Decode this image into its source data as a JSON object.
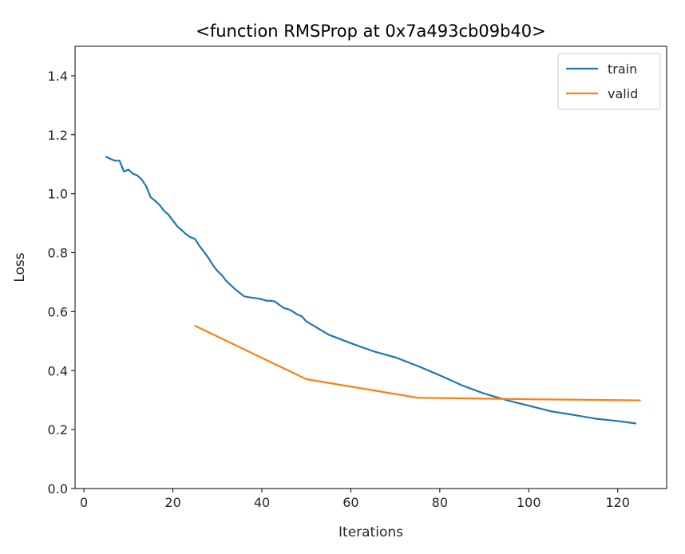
{
  "chart_data": {
    "type": "line",
    "title": "<function RMSProp at 0x7a493cb09b40>",
    "xlabel": "Iterations",
    "ylabel": "Loss",
    "xlim": [
      -2,
      131
    ],
    "ylim": [
      0.0,
      1.5
    ],
    "xticks": [
      0,
      20,
      40,
      60,
      80,
      100,
      120
    ],
    "yticks": [
      0.0,
      0.2,
      0.4,
      0.6,
      0.8,
      1.0,
      1.2,
      1.4
    ],
    "xtick_labels": [
      "0",
      "20",
      "40",
      "60",
      "80",
      "100",
      "120"
    ],
    "ytick_labels": [
      "0.0",
      "0.2",
      "0.4",
      "0.6",
      "0.8",
      "1.0",
      "1.2",
      "1.4"
    ],
    "grid": false,
    "legend_position": "top-right",
    "series": [
      {
        "name": "train",
        "color": "#1f77b4",
        "x": [
          5,
          6,
          7,
          8,
          9,
          10,
          11,
          12,
          13,
          14,
          15,
          16,
          17,
          18,
          19,
          20,
          21,
          22,
          23,
          24,
          25,
          26,
          27,
          28,
          29,
          30,
          31,
          32,
          33,
          34,
          35,
          36,
          37,
          38,
          39,
          40,
          41,
          42,
          43,
          44,
          45,
          46,
          47,
          48,
          49,
          50,
          55,
          60,
          65,
          70,
          75,
          80,
          85,
          90,
          95,
          100,
          105,
          110,
          115,
          120,
          124
        ],
        "y": [
          1.125,
          1.118,
          1.112,
          1.112,
          1.075,
          1.082,
          1.068,
          1.062,
          1.048,
          1.025,
          0.988,
          0.976,
          0.962,
          0.942,
          0.929,
          0.909,
          0.889,
          0.876,
          0.862,
          0.852,
          0.846,
          0.822,
          0.803,
          0.782,
          0.758,
          0.738,
          0.724,
          0.704,
          0.69,
          0.676,
          0.664,
          0.652,
          0.649,
          0.647,
          0.645,
          0.642,
          0.637,
          0.637,
          0.634,
          0.622,
          0.612,
          0.608,
          0.6,
          0.59,
          0.584,
          0.567,
          0.522,
          0.493,
          0.466,
          0.445,
          0.416,
          0.384,
          0.35,
          0.322,
          0.3,
          0.281,
          0.262,
          0.25,
          0.237,
          0.229,
          0.221
        ]
      },
      {
        "name": "valid",
        "color": "#ff7f0e",
        "x": [
          25,
          50,
          75,
          100,
          125
        ],
        "y": [
          0.552,
          0.371,
          0.308,
          0.303,
          0.299
        ]
      }
    ]
  }
}
